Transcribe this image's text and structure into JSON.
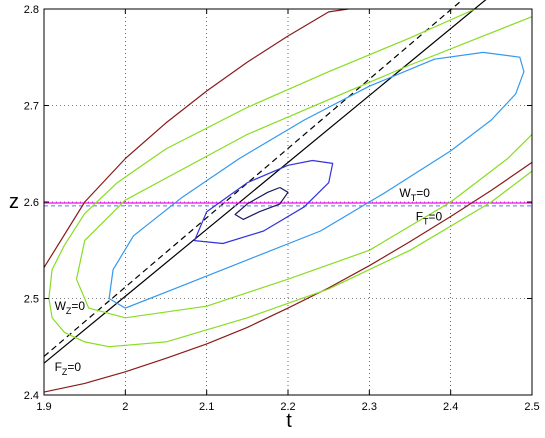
{
  "chart_data": {
    "type": "line",
    "title": "",
    "xlabel": "t",
    "ylabel": "z",
    "xlim": [
      1.9,
      2.5
    ],
    "ylim": [
      2.4,
      2.8
    ],
    "grid": true,
    "xticks": [
      1.9,
      2.0,
      2.1,
      2.2,
      2.3,
      2.4,
      2.5
    ],
    "yticks": [
      2.4,
      2.5,
      2.6,
      2.7,
      2.8
    ],
    "xtick_labels": [
      "1.9",
      "2",
      "2.1",
      "2.2",
      "2.3",
      "2.4",
      "2.5"
    ],
    "ytick_labels": [
      "2.4",
      "2.5",
      "2.6",
      "2.7",
      "2.8"
    ],
    "annotations": [
      {
        "main": "W",
        "sub": "T",
        "tail": "=0",
        "x": 2.337,
        "y": 2.605
      },
      {
        "main": "F",
        "sub": "T",
        "tail": "=0",
        "x": 2.357,
        "y": 2.581
      },
      {
        "main": "W",
        "sub": "Z",
        "tail": "=0",
        "x": 1.913,
        "y": 2.488
      },
      {
        "main": "F",
        "sub": "Z",
        "tail": "=0",
        "x": 1.913,
        "y": 2.425
      }
    ],
    "series": [
      {
        "color": "#000000",
        "dash": "",
        "x": [
          1.9,
          2.5
        ],
        "y": [
          2.433,
          2.849
        ]
      },
      {
        "color": "#000000",
        "dash": "6,4",
        "x": [
          1.9,
          2.5
        ],
        "y": [
          2.44,
          2.871
        ]
      },
      {
        "color": "#ff00ff",
        "dash": "",
        "x": [
          1.9,
          2.5
        ],
        "y": [
          2.599,
          2.599
        ]
      },
      {
        "color": "#8888ff",
        "dash": "4,3",
        "x": [
          1.9,
          2.5
        ],
        "y": [
          2.596,
          2.596
        ]
      },
      {
        "color": "#8b1a1a",
        "dash": "",
        "x": [
          1.9,
          1.95,
          2.0,
          2.05,
          2.1,
          2.15,
          2.2,
          2.25,
          2.274
        ],
        "y": [
          2.532,
          2.6,
          2.645,
          2.682,
          2.715,
          2.745,
          2.772,
          2.797,
          2.8
        ]
      },
      {
        "color": "#8b1a1a",
        "dash": "",
        "x": [
          1.9,
          1.95,
          2.0,
          2.05,
          2.1,
          2.15,
          2.2,
          2.25,
          2.3,
          2.35,
          2.4,
          2.45,
          2.5
        ],
        "y": [
          2.403,
          2.412,
          2.424,
          2.438,
          2.453,
          2.47,
          2.49,
          2.511,
          2.534,
          2.559,
          2.585,
          2.612,
          2.641
        ]
      },
      {
        "color": "#88dd22",
        "dash": "",
        "x": [
          2.43,
          2.35,
          2.25,
          2.15,
          2.05,
          1.99,
          1.95,
          1.925,
          1.91,
          1.906,
          1.91,
          1.925,
          1.95,
          1.98,
          2.05,
          2.15,
          2.25,
          2.35,
          2.45,
          2.5
        ],
        "y": [
          2.8,
          2.77,
          2.735,
          2.698,
          2.655,
          2.62,
          2.588,
          2.555,
          2.53,
          2.5,
          2.48,
          2.465,
          2.455,
          2.45,
          2.455,
          2.48,
          2.51,
          2.55,
          2.6,
          2.632
        ]
      },
      {
        "color": "#88dd22",
        "dash": "",
        "x": [
          2.5,
          2.35,
          2.15,
          2.0,
          1.95,
          1.94,
          1.955,
          2.0,
          2.1,
          2.2,
          2.3,
          2.4,
          2.47,
          2.5
        ],
        "y": [
          2.792,
          2.742,
          2.67,
          2.602,
          2.56,
          2.52,
          2.49,
          2.48,
          2.492,
          2.52,
          2.55,
          2.6,
          2.645,
          2.67
        ]
      },
      {
        "color": "#3399ee",
        "dash": "",
        "x": [
          2.44,
          2.485,
          2.49,
          2.48,
          2.45,
          2.4,
          2.32,
          2.24,
          2.15,
          2.06,
          2.0,
          1.98,
          1.985,
          2.01,
          2.07,
          2.14,
          2.22,
          2.3,
          2.38,
          2.44
        ],
        "y": [
          2.755,
          2.75,
          2.735,
          2.712,
          2.685,
          2.653,
          2.61,
          2.57,
          2.54,
          2.51,
          2.49,
          2.5,
          2.53,
          2.565,
          2.605,
          2.645,
          2.685,
          2.72,
          2.748,
          2.755
        ]
      },
      {
        "color": "#3333dd",
        "dash": "",
        "x": [
          2.23,
          2.255,
          2.25,
          2.22,
          2.17,
          2.12,
          2.085,
          2.1,
          2.15,
          2.2,
          2.23
        ],
        "y": [
          2.643,
          2.64,
          2.62,
          2.595,
          2.57,
          2.557,
          2.56,
          2.59,
          2.62,
          2.638,
          2.643
        ]
      },
      {
        "color": "#1a1a66",
        "dash": "",
        "x": [
          2.19,
          2.2,
          2.19,
          2.165,
          2.145,
          2.135,
          2.15,
          2.175,
          2.19
        ],
        "y": [
          2.615,
          2.61,
          2.598,
          2.59,
          2.582,
          2.587,
          2.598,
          2.61,
          2.615
        ]
      }
    ]
  }
}
